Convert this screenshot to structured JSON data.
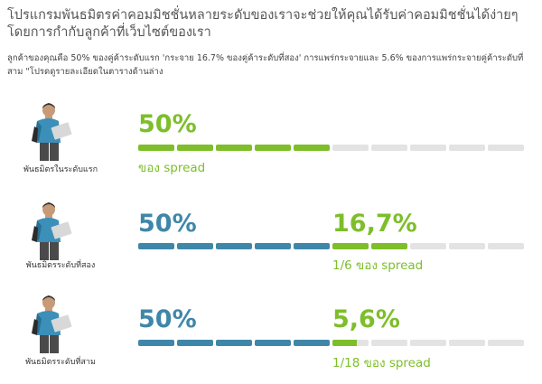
{
  "header": {
    "title": "โปรแกรมพันธมิตรค่าคอมมิชชั่นหลายระดับของเราจะช่วยให้คุณได้รับค่าคอมมิชชั่นได้ง่ายๆโดยการกำกับลูกค้าที่เว็บไซต์ของเรา",
    "intro": "ลูกค้าของคุณคือ 50% ของคู่ค้าระดับแรก 'กระจาย 16.7% ของคู่ค้าระดับที่สอง' การแพร่กระจายและ 5.6% ของการแพร่กระจายคู่ค้าระดับที่สาม \"โปรดดูรายละเอียดในตารางด้านล่าง"
  },
  "colors": {
    "green": "#7dbe2a",
    "blue": "#3f87a8",
    "empty": "#e3e3e3"
  },
  "tiers": [
    {
      "label": "พันธมิตรในระดับแรก",
      "main_pct": "50%",
      "main_fill": 0.5,
      "main_color": "green",
      "sub": "ของ spread"
    },
    {
      "label": "พันธมิตรระดับที่สอง",
      "main_pct": "50%",
      "main_fill": 0.5,
      "main_color": "blue",
      "second_pct": "16,7%",
      "second_fill": 0.1667,
      "sub": "1/6 ของ spread"
    },
    {
      "label": "พันธมิตรระดับที่สาม",
      "main_pct": "50%",
      "main_fill": 0.5,
      "main_color": "blue",
      "second_pct": "5,6%",
      "second_fill": 0.056,
      "sub": "1/18 ของ spread"
    }
  ]
}
